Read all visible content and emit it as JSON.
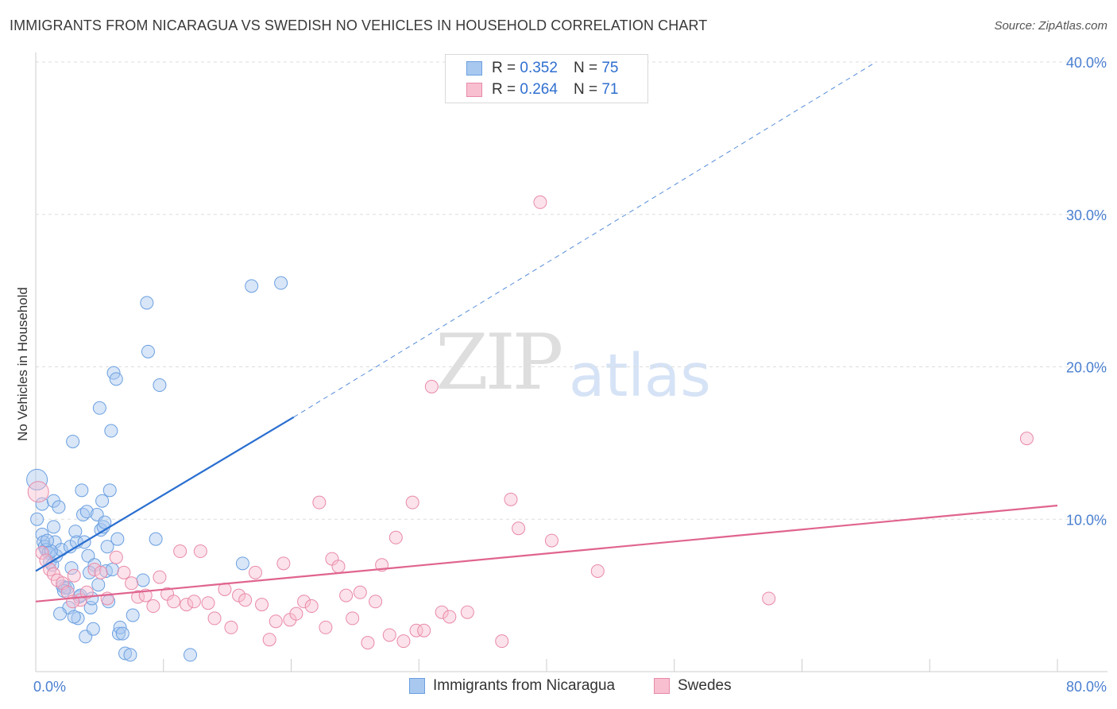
{
  "header": {
    "title": "IMMIGRANTS FROM NICARAGUA VS SWEDISH NO VEHICLES IN HOUSEHOLD CORRELATION CHART",
    "source": "Source: ZipAtlas.com"
  },
  "watermark": {
    "zip": "ZIP",
    "atlas": "atlas"
  },
  "legend": {
    "items": [
      {
        "r_label": "R =",
        "r_value": "0.352",
        "n_label": "N =",
        "n_value": "75",
        "color": "#a8c8f0",
        "border": "#6a9fe0"
      },
      {
        "r_label": "R =",
        "r_value": "0.264",
        "n_label": "N =",
        "n_value": "71",
        "color": "#f8bfd0",
        "border": "#e88aa8"
      }
    ]
  },
  "bottom_legend": {
    "series1": "Immigrants from Nicaragua",
    "series2": "Swedes"
  },
  "colors": {
    "blue_fill": "#a8c8f0",
    "blue_stroke": "#6a9fe0",
    "blue_line": "#2a6fd0",
    "pink_fill": "#f8bfd0",
    "pink_stroke": "#e88aa8",
    "pink_line": "#e0648f",
    "grid": "#dddddd",
    "tick_text": "#4a7fd0"
  },
  "chart_data": {
    "type": "scatter",
    "title": "IMMIGRANTS FROM NICARAGUA VS SWEDISH NO VEHICLES IN HOUSEHOLD CORRELATION CHART",
    "xlabel": "",
    "ylabel": "No Vehicles in Household",
    "xlim": [
      0,
      80
    ],
    "ylim": [
      0,
      40
    ],
    "x_tick_labels": [
      "0.0%",
      "80.0%"
    ],
    "y_ticks": [
      10,
      20,
      30,
      40
    ],
    "y_tick_labels": [
      "10.0%",
      "20.0%",
      "30.0%",
      "40.0%"
    ],
    "grid": true,
    "series": [
      {
        "name": "Immigrants from Nicaragua",
        "r": 0.352,
        "n": 75,
        "trend": {
          "x0": 0,
          "y0": 6.6,
          "x1": 20.2,
          "y1": 16.7,
          "dashed_to_x": 65.8,
          "dashed_to_y": 40.0
        },
        "points": [
          [
            0.1,
            12.6
          ],
          [
            0.1,
            10.0
          ],
          [
            0.5,
            11.0
          ],
          [
            0.5,
            9.0
          ],
          [
            0.6,
            8.5
          ],
          [
            0.7,
            8.2
          ],
          [
            0.8,
            8.0
          ],
          [
            1.0,
            7.8
          ],
          [
            1.1,
            7.2
          ],
          [
            1.3,
            7.0
          ],
          [
            1.4,
            11.2
          ],
          [
            1.4,
            9.5
          ],
          [
            1.5,
            8.5
          ],
          [
            1.6,
            7.6
          ],
          [
            1.8,
            10.8
          ],
          [
            2.0,
            8.0
          ],
          [
            2.1,
            5.6
          ],
          [
            2.3,
            5.5
          ],
          [
            2.5,
            5.5
          ],
          [
            2.7,
            8.2
          ],
          [
            2.8,
            6.8
          ],
          [
            2.9,
            15.1
          ],
          [
            3.1,
            9.2
          ],
          [
            3.2,
            8.5
          ],
          [
            3.3,
            3.5
          ],
          [
            3.4,
            4.9
          ],
          [
            3.5,
            5.0
          ],
          [
            3.6,
            11.9
          ],
          [
            3.7,
            10.3
          ],
          [
            3.8,
            8.5
          ],
          [
            3.9,
            2.3
          ],
          [
            4.0,
            10.5
          ],
          [
            4.1,
            7.6
          ],
          [
            4.3,
            4.2
          ],
          [
            4.4,
            4.8
          ],
          [
            4.5,
            2.8
          ],
          [
            4.6,
            7.0
          ],
          [
            4.8,
            10.3
          ],
          [
            4.9,
            5.7
          ],
          [
            5.0,
            17.3
          ],
          [
            5.1,
            9.3
          ],
          [
            5.2,
            11.2
          ],
          [
            5.3,
            9.5
          ],
          [
            5.4,
            9.8
          ],
          [
            5.5,
            6.6
          ],
          [
            5.6,
            8.2
          ],
          [
            5.7,
            4.6
          ],
          [
            5.8,
            11.9
          ],
          [
            5.9,
            15.8
          ],
          [
            6.1,
            19.6
          ],
          [
            6.3,
            19.2
          ],
          [
            6.4,
            8.7
          ],
          [
            6.5,
            2.5
          ],
          [
            6.6,
            2.9
          ],
          [
            6.8,
            2.5
          ],
          [
            7.0,
            1.2
          ],
          [
            7.4,
            1.1
          ],
          [
            7.6,
            3.7
          ],
          [
            8.4,
            6.0
          ],
          [
            8.7,
            24.2
          ],
          [
            8.8,
            21.0
          ],
          [
            9.4,
            8.7
          ],
          [
            9.7,
            18.8
          ],
          [
            12.1,
            1.1
          ],
          [
            16.2,
            7.1
          ],
          [
            16.9,
            25.3
          ],
          [
            19.2,
            25.5
          ],
          [
            1.2,
            7.9
          ],
          [
            0.9,
            8.6
          ],
          [
            2.2,
            5.3
          ],
          [
            2.6,
            4.2
          ],
          [
            3.0,
            3.6
          ],
          [
            4.2,
            6.5
          ],
          [
            1.9,
            3.8
          ],
          [
            6.0,
            6.7
          ]
        ]
      },
      {
        "name": "Swedes",
        "r": 0.264,
        "n": 71,
        "trend": {
          "x0": 0,
          "y0": 4.6,
          "x1": 80,
          "y1": 10.9
        },
        "points": [
          [
            0.2,
            11.8
          ],
          [
            0.5,
            7.8
          ],
          [
            0.8,
            7.3
          ],
          [
            1.1,
            6.7
          ],
          [
            1.4,
            6.4
          ],
          [
            1.7,
            6.0
          ],
          [
            2.1,
            5.8
          ],
          [
            2.5,
            5.2
          ],
          [
            3.0,
            6.3
          ],
          [
            3.5,
            4.7
          ],
          [
            4.0,
            5.2
          ],
          [
            4.6,
            6.7
          ],
          [
            5.1,
            6.5
          ],
          [
            5.6,
            4.8
          ],
          [
            6.3,
            7.5
          ],
          [
            6.9,
            6.5
          ],
          [
            7.5,
            5.8
          ],
          [
            8.0,
            4.9
          ],
          [
            8.6,
            5.0
          ],
          [
            9.2,
            4.3
          ],
          [
            9.7,
            6.2
          ],
          [
            10.3,
            5.1
          ],
          [
            10.8,
            4.6
          ],
          [
            11.3,
            7.9
          ],
          [
            11.8,
            4.4
          ],
          [
            12.4,
            4.6
          ],
          [
            12.9,
            7.9
          ],
          [
            13.5,
            4.5
          ],
          [
            14.0,
            3.5
          ],
          [
            14.8,
            5.4
          ],
          [
            15.3,
            2.9
          ],
          [
            15.9,
            5.0
          ],
          [
            16.4,
            4.7
          ],
          [
            17.2,
            6.5
          ],
          [
            17.7,
            4.4
          ],
          [
            18.3,
            2.1
          ],
          [
            18.8,
            3.3
          ],
          [
            19.4,
            7.1
          ],
          [
            19.9,
            3.4
          ],
          [
            20.4,
            3.8
          ],
          [
            21.0,
            4.6
          ],
          [
            21.6,
            4.3
          ],
          [
            22.2,
            11.1
          ],
          [
            22.7,
            2.9
          ],
          [
            23.2,
            7.4
          ],
          [
            23.7,
            6.9
          ],
          [
            24.3,
            5.0
          ],
          [
            24.8,
            3.5
          ],
          [
            25.4,
            5.2
          ],
          [
            26.0,
            1.9
          ],
          [
            26.6,
            4.6
          ],
          [
            27.1,
            7.0
          ],
          [
            27.7,
            2.4
          ],
          [
            28.2,
            8.8
          ],
          [
            28.8,
            2.0
          ],
          [
            29.5,
            11.1
          ],
          [
            29.8,
            2.7
          ],
          [
            30.4,
            2.7
          ],
          [
            31.0,
            18.7
          ],
          [
            31.8,
            3.9
          ],
          [
            32.4,
            3.6
          ],
          [
            33.8,
            3.9
          ],
          [
            36.5,
            2.0
          ],
          [
            37.2,
            11.3
          ],
          [
            37.8,
            9.4
          ],
          [
            39.5,
            30.8
          ],
          [
            40.4,
            8.6
          ],
          [
            44.0,
            6.6
          ],
          [
            57.4,
            4.8
          ],
          [
            77.6,
            15.3
          ],
          [
            2.9,
            4.6
          ]
        ]
      }
    ]
  }
}
